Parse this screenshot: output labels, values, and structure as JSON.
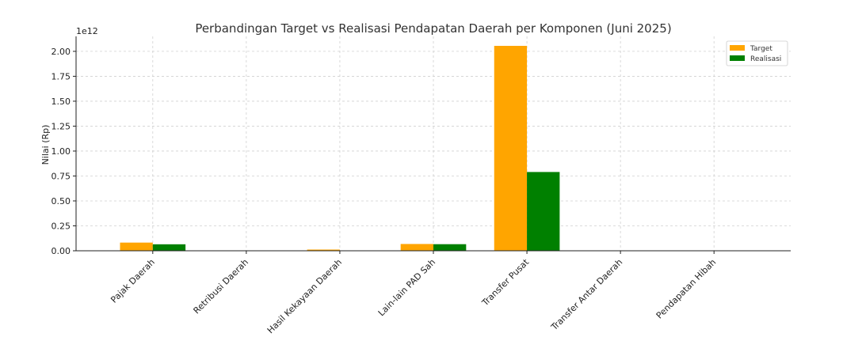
{
  "chart_data": {
    "type": "bar",
    "title": "Perbandingan Target vs Realisasi Pendapatan Daerah per Komponen (Juni 2025)",
    "ylabel": "Nilai (Rp)",
    "xlabel": "",
    "y_offset_text": "1e12",
    "ylim": [
      0,
      2150000000000.0
    ],
    "yticks": [
      0,
      250000000000.0,
      500000000000.0,
      750000000000.0,
      1000000000000.0,
      1250000000000.0,
      1500000000000.0,
      1750000000000.0,
      2000000000000.0
    ],
    "ytick_labels": [
      "0.00",
      "0.25",
      "0.50",
      "0.75",
      "1.00",
      "1.25",
      "1.50",
      "1.75",
      "2.00"
    ],
    "grid": true,
    "legend_position": "top-right",
    "categories": [
      "Pajak Daerah",
      "Retribusi Daerah",
      "Hasil Kekayaan Daerah",
      "Lain-lain PAD Sah",
      "Transfer Pusat",
      "Transfer Antar Daerah",
      "Pendapatan Hibah"
    ],
    "series": [
      {
        "name": "Target",
        "color": "#ffa500",
        "values": [
          82000000000.0,
          1000000000.0,
          12000000000.0,
          68000000000.0,
          2055000000000.0,
          0,
          0
        ]
      },
      {
        "name": "Realisasi",
        "color": "#008000",
        "values": [
          65000000000.0,
          500000000.0,
          3000000000.0,
          66000000000.0,
          790000000000.0,
          0,
          0
        ]
      }
    ]
  }
}
